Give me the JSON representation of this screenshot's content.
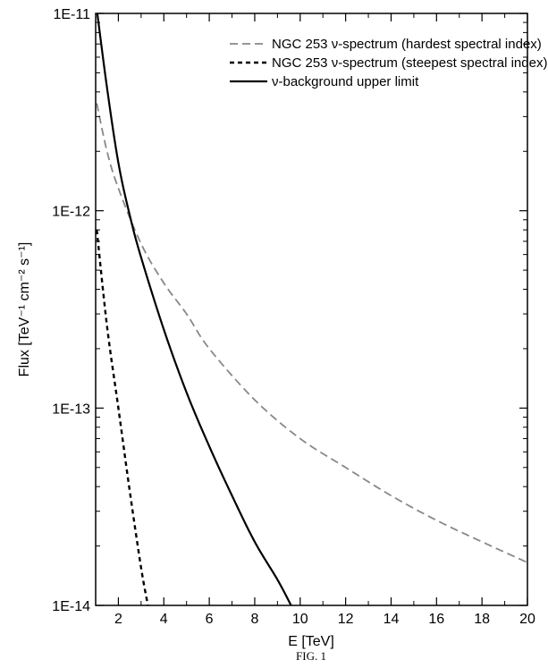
{
  "chart_data": {
    "type": "line",
    "xlabel": "E [TeV]",
    "ylabel": "Flux [TeV⁻¹ cm⁻² s⁻¹]",
    "xlim": [
      1,
      20
    ],
    "ylim": [
      1e-14,
      1e-11
    ],
    "yscale": "log",
    "x_ticks": [
      2,
      4,
      6,
      8,
      10,
      12,
      14,
      16,
      18,
      20
    ],
    "y_ticks": [
      {
        "value": 1e-14,
        "label": "1E-14"
      },
      {
        "value": 1e-13,
        "label": "1E-13"
      },
      {
        "value": 1e-12,
        "label": "1E-12"
      },
      {
        "value": 1e-11,
        "label": "1E-11"
      }
    ],
    "legend_position": "top-right",
    "caption": "FIG. 1",
    "series": [
      {
        "name": "NGC 253 ν-spectrum (hardest spectral index)",
        "style": "dashed",
        "color": "#888888",
        "points": [
          [
            1.05,
            3.5e-12
          ],
          [
            1.5,
            2e-12
          ],
          [
            2,
            1.3e-12
          ],
          [
            3,
            6.8e-13
          ],
          [
            4,
            4.3e-13
          ],
          [
            5,
            3e-13
          ],
          [
            6,
            2e-13
          ],
          [
            8,
            1.1e-13
          ],
          [
            10,
            7e-14
          ],
          [
            12,
            5e-14
          ],
          [
            14,
            3.6e-14
          ],
          [
            16,
            2.7e-14
          ],
          [
            18,
            2.1e-14
          ],
          [
            20,
            1.65e-14
          ]
        ]
      },
      {
        "name": "NGC 253 ν-spectrum (steepest spectral index)",
        "style": "dotted",
        "color": "#000000",
        "points": [
          [
            1.05,
            8e-13
          ],
          [
            1.5,
            2.6e-13
          ],
          [
            2,
            1e-13
          ],
          [
            2.5,
            3.8e-14
          ],
          [
            3,
            1.55e-14
          ],
          [
            3.3,
            1e-14
          ]
        ]
      },
      {
        "name": "ν-background upper limit",
        "style": "solid",
        "color": "#000000",
        "points": [
          [
            1.05,
            1.05e-11
          ],
          [
            1.5,
            4.2e-12
          ],
          [
            2,
            1.75e-12
          ],
          [
            2.5,
            9.5e-13
          ],
          [
            3,
            5.8e-13
          ],
          [
            4,
            2.5e-13
          ],
          [
            5,
            1.2e-13
          ],
          [
            6,
            6.4e-14
          ],
          [
            7,
            3.6e-14
          ],
          [
            8,
            2.1e-14
          ],
          [
            9,
            1.35e-14
          ],
          [
            9.6,
            1e-14
          ]
        ]
      }
    ]
  }
}
